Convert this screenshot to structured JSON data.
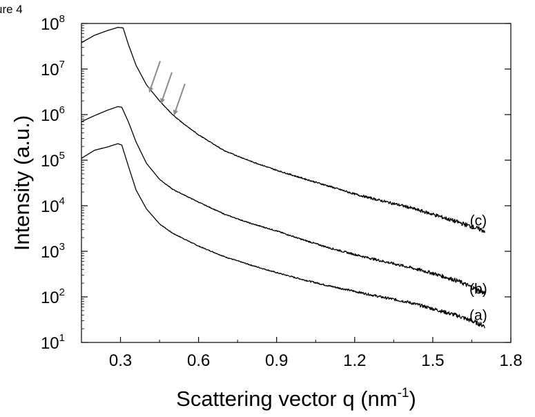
{
  "figure_label": "ure 4",
  "chart_data": {
    "type": "line",
    "title": "",
    "xlabel": "Scattering vector q (nm",
    "xlabel_sup": "-1",
    "xlabel_end": ")",
    "ylabel": "Intensity (a.u.)",
    "xlim": [
      0.15,
      1.8
    ],
    "ylim": [
      10,
      100000000
    ],
    "y_scale": "log",
    "grid": false,
    "x_ticks": [
      {
        "value": 0.3,
        "label": "0.3"
      },
      {
        "value": 0.6,
        "label": "0.6"
      },
      {
        "value": 0.9,
        "label": "0.9"
      },
      {
        "value": 1.2,
        "label": "1.2"
      },
      {
        "value": 1.5,
        "label": "1.5"
      },
      {
        "value": 1.8,
        "label": "1.8"
      }
    ],
    "y_ticks": [
      {
        "value": 10,
        "base": "10",
        "exp": "1"
      },
      {
        "value": 100,
        "base": "10",
        "exp": "2"
      },
      {
        "value": 1000,
        "base": "10",
        "exp": "3"
      },
      {
        "value": 10000,
        "base": "10",
        "exp": "4"
      },
      {
        "value": 100000,
        "base": "10",
        "exp": "5"
      },
      {
        "value": 1000000,
        "base": "10",
        "exp": "6"
      },
      {
        "value": 10000000,
        "base": "10",
        "exp": "7"
      },
      {
        "value": 100000000,
        "base": "10",
        "exp": "8"
      }
    ],
    "series": [
      {
        "name": "(a)",
        "label_at": {
          "x": 1.675,
          "y": 40
        },
        "points": [
          [
            0.15,
            110000
          ],
          [
            0.2,
            165000
          ],
          [
            0.25,
            195000
          ],
          [
            0.29,
            230000
          ],
          [
            0.305,
            215000
          ],
          [
            0.33,
            75000
          ],
          [
            0.36,
            22000
          ],
          [
            0.4,
            8500
          ],
          [
            0.45,
            4000
          ],
          [
            0.5,
            2500
          ],
          [
            0.6,
            1300
          ],
          [
            0.7,
            760
          ],
          [
            0.8,
            500
          ],
          [
            0.9,
            340
          ],
          [
            1.0,
            240
          ],
          [
            1.1,
            175
          ],
          [
            1.2,
            132
          ],
          [
            1.3,
            100
          ],
          [
            1.4,
            78
          ],
          [
            1.5,
            55
          ],
          [
            1.6,
            38
          ],
          [
            1.7,
            23
          ]
        ]
      },
      {
        "name": "(b)",
        "label_at": {
          "x": 1.675,
          "y": 150
        },
        "points": [
          [
            0.15,
            700000
          ],
          [
            0.2,
            950000
          ],
          [
            0.25,
            1250000
          ],
          [
            0.29,
            1500000
          ],
          [
            0.305,
            1450000
          ],
          [
            0.33,
            700000
          ],
          [
            0.36,
            250000
          ],
          [
            0.4,
            85000
          ],
          [
            0.45,
            38000
          ],
          [
            0.5,
            23000
          ],
          [
            0.6,
            12000
          ],
          [
            0.7,
            6500
          ],
          [
            0.8,
            4100
          ],
          [
            0.9,
            2800
          ],
          [
            1.0,
            1800
          ],
          [
            1.1,
            1200
          ],
          [
            1.2,
            850
          ],
          [
            1.3,
            620
          ],
          [
            1.4,
            460
          ],
          [
            1.5,
            330
          ],
          [
            1.6,
            220
          ],
          [
            1.7,
            120
          ]
        ]
      },
      {
        "name": "(c)",
        "label_at": {
          "x": 1.675,
          "y": 4700
        },
        "points": [
          [
            0.15,
            38000000
          ],
          [
            0.2,
            55000000
          ],
          [
            0.25,
            70000000
          ],
          [
            0.29,
            82000000
          ],
          [
            0.31,
            80000000
          ],
          [
            0.33,
            35000000
          ],
          [
            0.36,
            12000000
          ],
          [
            0.4,
            4500000
          ],
          [
            0.45,
            2000000
          ],
          [
            0.5,
            1000000
          ],
          [
            0.55,
            580000
          ],
          [
            0.6,
            360000
          ],
          [
            0.7,
            160000
          ],
          [
            0.8,
            95000
          ],
          [
            0.9,
            60000
          ],
          [
            1.0,
            40000
          ],
          [
            1.1,
            27000
          ],
          [
            1.2,
            18000
          ],
          [
            1.3,
            13000
          ],
          [
            1.4,
            9500
          ],
          [
            1.5,
            6500
          ],
          [
            1.6,
            4300
          ],
          [
            1.7,
            2800
          ]
        ]
      }
    ],
    "annotations": [
      {
        "type": "arrow",
        "color": "#8a8a8a",
        "x": 0.41,
        "y": 3000000
      },
      {
        "type": "arrow",
        "color": "#8a8a8a",
        "x": 0.455,
        "y": 1700000
      },
      {
        "type": "arrow",
        "color": "#8a8a8a",
        "x": 0.505,
        "y": 950000
      }
    ]
  }
}
